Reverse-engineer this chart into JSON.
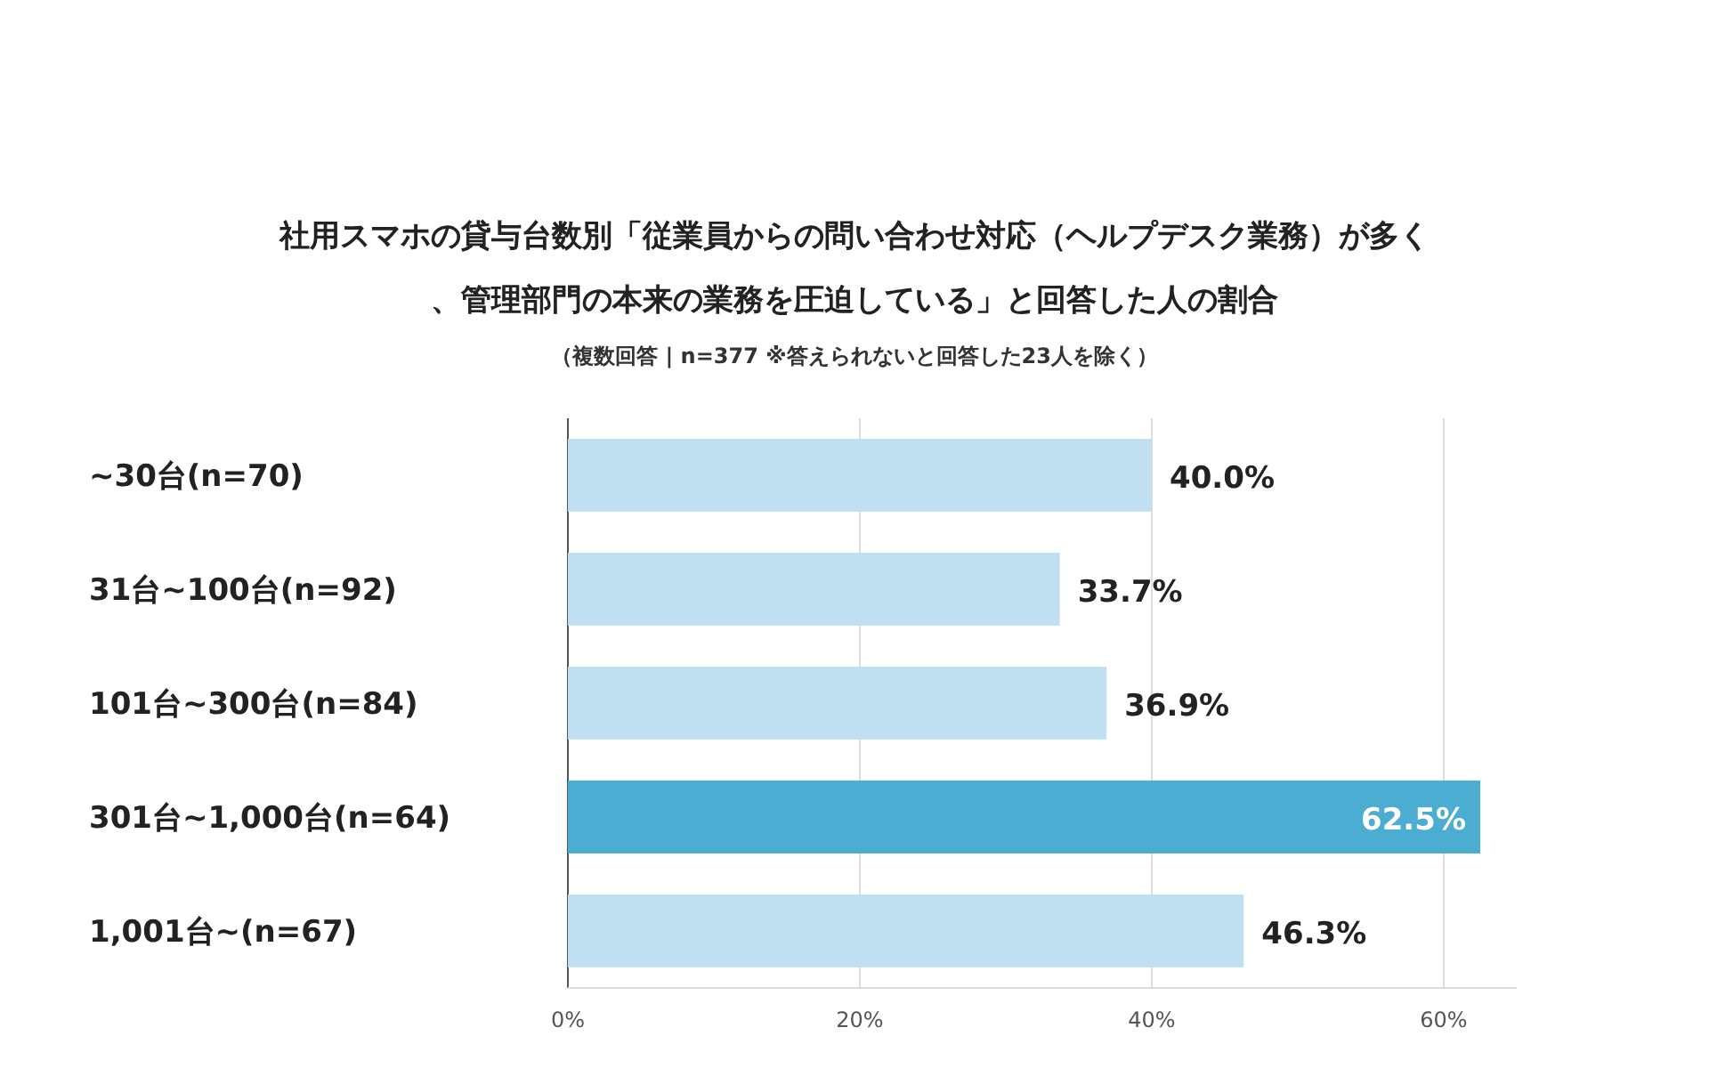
{
  "chart_data": {
    "type": "bar",
    "orientation": "horizontal",
    "title": "社用スマホの貸与台数別「従業員からの問い合わせ対応（ヘルプデスク業務）が多く、管理部門の本来の業務を圧迫している」と回答した人の割合",
    "subtitle": "（複数回答 | n=377 ※答えられないと回答した23人を除く）",
    "categories": [
      "~30台(n=70)",
      "31台~100台(n=92)",
      "101台~300台(n=84)",
      "301台~1,000台(n=64)",
      "1,001台~(n=67)"
    ],
    "values": [
      40.0,
      33.7,
      36.9,
      62.5,
      46.3
    ],
    "value_labels": [
      "40.0%",
      "33.7%",
      "36.9%",
      "62.5%",
      "46.3%"
    ],
    "colors": [
      "#c0e0f1",
      "#c0e0f1",
      "#c0e0f1",
      "#4badd1",
      "#c0e0f1"
    ],
    "xlim": [
      0,
      65
    ],
    "xticks": [
      {
        "value": 0,
        "label": "0%"
      },
      {
        "value": 20,
        "label": "20%"
      },
      {
        "value": 40,
        "label": "40%"
      },
      {
        "value": 60,
        "label": "60%"
      }
    ],
    "grid": "x"
  }
}
